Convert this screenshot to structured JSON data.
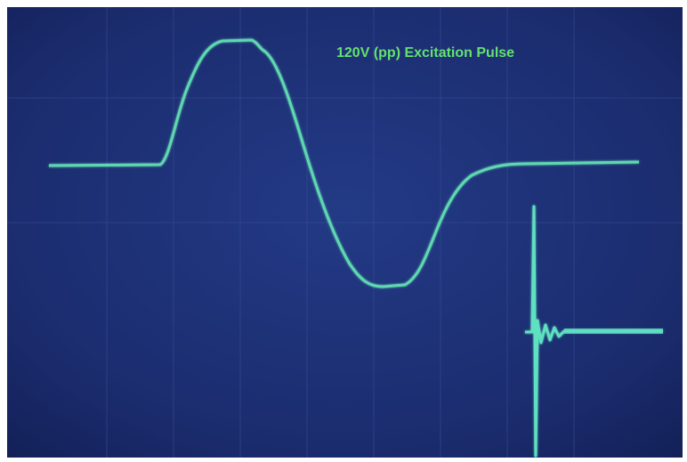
{
  "annotation": "120V (pp) Excitation Pulse"
}
